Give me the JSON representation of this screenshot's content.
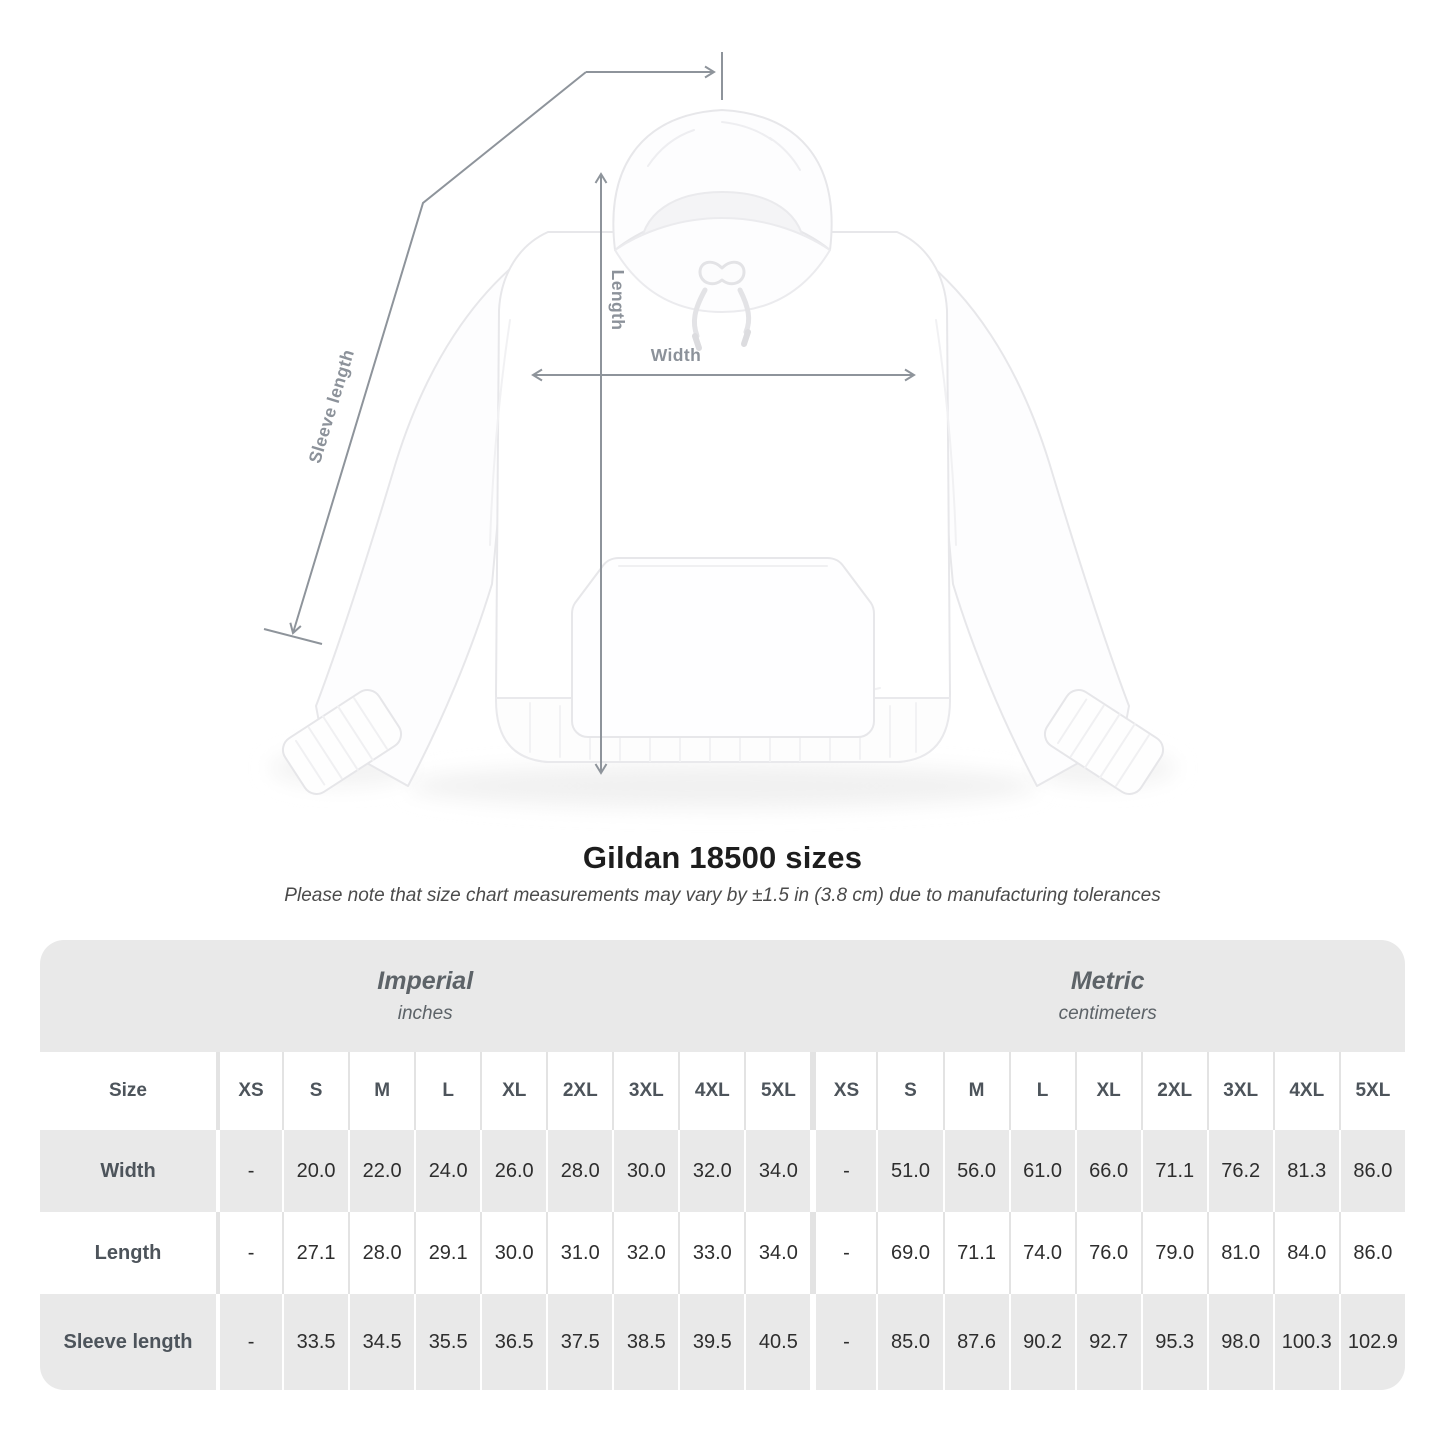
{
  "figure": {
    "measurement_labels": {
      "length": "Length",
      "width": "Width",
      "sleeve_length": "Sleeve length"
    },
    "line_color": "#8e949b",
    "label_color": "#8c929a"
  },
  "heading": {
    "title": "Gildan 18500 sizes",
    "note": "Please note that size chart measurements may vary by ±1.5 in (3.8 cm) due to manufacturing tolerances"
  },
  "table": {
    "sections": [
      {
        "label": "Imperial",
        "unit": "inches"
      },
      {
        "label": "Metric",
        "unit": "centimeters"
      }
    ],
    "size_header": "Size",
    "sizes": [
      "XS",
      "S",
      "M",
      "L",
      "XL",
      "2XL",
      "3XL",
      "4XL",
      "5XL"
    ],
    "rows": [
      {
        "label": "Width",
        "imperial": [
          "-",
          "20.0",
          "22.0",
          "24.0",
          "26.0",
          "28.0",
          "30.0",
          "32.0",
          "34.0"
        ],
        "metric": [
          "-",
          "51.0",
          "56.0",
          "61.0",
          "66.0",
          "71.1",
          "76.2",
          "81.3",
          "86.0"
        ]
      },
      {
        "label": "Length",
        "imperial": [
          "-",
          "27.1",
          "28.0",
          "29.1",
          "30.0",
          "31.0",
          "32.0",
          "33.0",
          "34.0"
        ],
        "metric": [
          "-",
          "69.0",
          "71.1",
          "74.0",
          "76.0",
          "79.0",
          "81.0",
          "84.0",
          "86.0"
        ]
      },
      {
        "label": "Sleeve length",
        "imperial": [
          "-",
          "33.5",
          "34.5",
          "35.5",
          "36.5",
          "37.5",
          "38.5",
          "39.5",
          "40.5"
        ],
        "metric": [
          "-",
          "85.0",
          "87.6",
          "90.2",
          "92.7",
          "95.3",
          "98.0",
          "100.3",
          "102.9"
        ]
      }
    ],
    "colors": {
      "band": "#e9e9e9",
      "row_gray": "#e9e9e9",
      "row_white": "#ffffff",
      "separator_on_white": "#e3e3e3",
      "separator_on_gray": "#ffffff"
    }
  }
}
